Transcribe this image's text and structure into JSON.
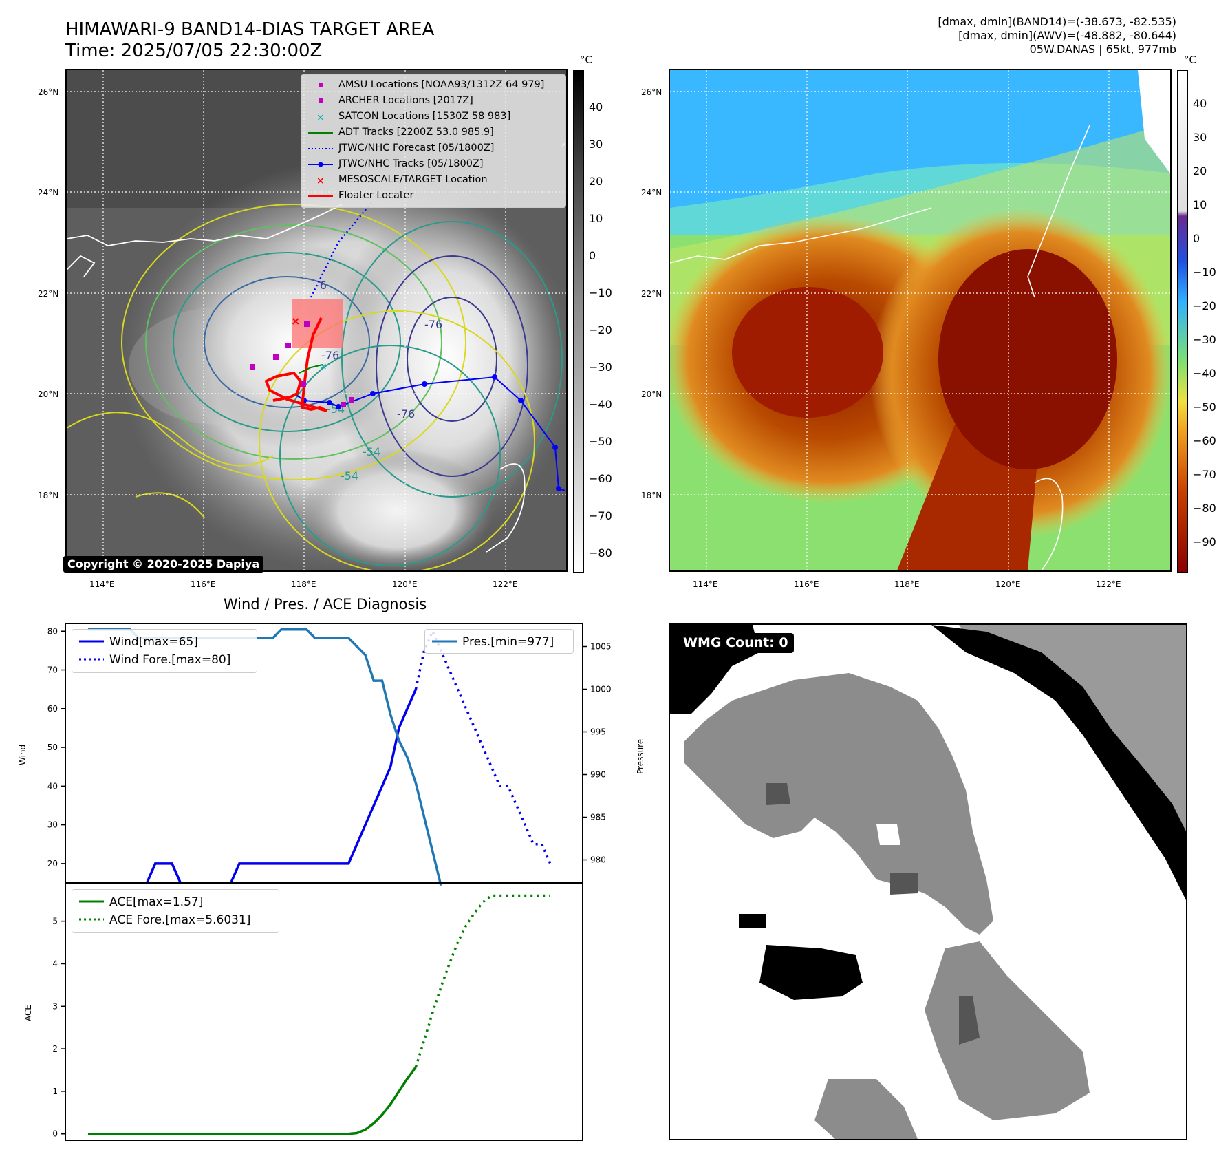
{
  "header": {
    "title": "HIMAWARI-9 BAND14-DIAS TARGET AREA",
    "time": "Time: 2025/07/05 22:30:00Z",
    "dmax_band14": "[dmax, dmin](BAND14)=(-38.673, -82.535)",
    "dmax_awv": "[dmax, dmin](AWV)=(-48.882, -80.644)",
    "storm": "05W.DANAS | 65kt, 977mb"
  },
  "map_left": {
    "lat_labels": [
      "26°N",
      "24°N",
      "22°N",
      "20°N",
      "18°N"
    ],
    "lon_labels": [
      "114°E",
      "116°E",
      "118°E",
      "120°E",
      "122°E"
    ],
    "copyright": "Copyright © 2020-2025 Dapiya",
    "contour_labels": [
      "-6",
      "-76",
      "-76",
      "-54",
      "-54",
      "-54",
      "-76"
    ],
    "legend": [
      {
        "label": "AMSU Locations [NOAA93/1312Z 64 979]",
        "symbol": "square",
        "color": "#c000c0"
      },
      {
        "label": "ARCHER Locations [2017Z]",
        "symbol": "square",
        "color": "#c000c0"
      },
      {
        "label": "SATCON Locations [1530Z 58 983]",
        "symbol": "x",
        "color": "#00b0b0"
      },
      {
        "label": "ADT Tracks [2200Z 53.0 985.9]",
        "symbol": "line",
        "color": "#008000"
      },
      {
        "label": "JTWC/NHC Forecast [05/1800Z]",
        "symbol": "dotted",
        "color": "#0000ff"
      },
      {
        "label": "JTWC/NHC Tracks [05/1800Z]",
        "symbol": "dotline",
        "color": "#0000ff"
      },
      {
        "label": "MESOSCALE/TARGET Location",
        "symbol": "x",
        "color": "#ff0000"
      },
      {
        "label": "Floater Locater",
        "symbol": "line",
        "color": "#ff0000"
      }
    ],
    "colorbar_unit": "°C",
    "colorbar_ticks": [
      "40",
      "30",
      "20",
      "10",
      "0",
      "−10",
      "−20",
      "−30",
      "−40",
      "−50",
      "−60",
      "−70",
      "−80"
    ]
  },
  "map_right": {
    "lat_labels": [
      "26°N",
      "24°N",
      "22°N",
      "20°N",
      "18°N"
    ],
    "lon_labels": [
      "114°E",
      "116°E",
      "118°E",
      "120°E",
      "122°E"
    ],
    "colorbar_unit": "°C",
    "colorbar_ticks": [
      "40",
      "30",
      "20",
      "10",
      "0",
      "−10",
      "−20",
      "−30",
      "−40",
      "−50",
      "−60",
      "−70",
      "−80",
      "−90"
    ]
  },
  "wmg": {
    "label": "WMG Count: 0"
  },
  "diagnosis": {
    "title": "Wind / Pres. / ACE Diagnosis"
  },
  "colors": {
    "wind": "#0000ee",
    "pressure": "#1f77b4",
    "ace": "#008000"
  },
  "chart_data": [
    {
      "type": "line",
      "title": "Wind / Pres. / ACE Diagnosis",
      "ylabel": "Wind",
      "y2label": "Pressure",
      "ylim": [
        15,
        82
      ],
      "y2lim": [
        977.3,
        1007.7
      ],
      "yticks": [
        "20",
        "30",
        "40",
        "50",
        "60",
        "70",
        "80"
      ],
      "y2ticks": [
        "980",
        "985",
        "990",
        "995",
        "1000",
        "1005"
      ],
      "series": [
        {
          "name": "Wind[max=65]",
          "axis": "left",
          "style": "solid",
          "color": "#0000ee",
          "values": [
            15,
            15,
            15,
            15,
            15,
            15,
            15,
            15,
            20,
            20,
            20,
            15,
            15,
            15,
            15,
            15,
            15,
            15,
            20,
            20,
            20,
            20,
            20,
            20,
            20,
            20,
            20,
            20,
            20,
            20,
            20,
            20,
            25,
            30,
            35,
            40,
            45,
            55,
            60,
            65
          ]
        },
        {
          "name": "Wind Fore.[max=80]",
          "axis": "left",
          "style": "dotted",
          "color": "#0000ee",
          "index_start": 39,
          "values": [
            65,
            75,
            80,
            75,
            70,
            65,
            60,
            55,
            50,
            45,
            40,
            40,
            35,
            30,
            25,
            25,
            20
          ]
        },
        {
          "name": "Pres.[min=977]",
          "axis": "right",
          "style": "solid",
          "color": "#1f77b4",
          "values": [
            1007,
            1007,
            1007,
            1007,
            1007,
            1007,
            1006,
            1006,
            1006,
            1006,
            1006,
            1006,
            1006,
            1006,
            1006,
            1006,
            1006,
            1006,
            1006,
            1006,
            1006,
            1006,
            1006,
            1007,
            1007,
            1007,
            1007,
            1006,
            1006,
            1006,
            1006,
            1006,
            1005,
            1004,
            1001,
            1001,
            997,
            994,
            992,
            989,
            985,
            981,
            977
          ]
        }
      ]
    },
    {
      "type": "line",
      "ylabel": "ACE",
      "ylim": [
        -0.15,
        5.9
      ],
      "yticks": [
        "0",
        "1",
        "2",
        "3",
        "4",
        "5"
      ],
      "series": [
        {
          "name": "ACE[max=1.57]",
          "style": "solid",
          "color": "#008000",
          "values": [
            0,
            0,
            0,
            0,
            0,
            0,
            0,
            0,
            0,
            0,
            0,
            0,
            0,
            0,
            0,
            0,
            0,
            0,
            0,
            0,
            0,
            0,
            0,
            0,
            0,
            0,
            0,
            0,
            0,
            0,
            0,
            0,
            0.02,
            0.1,
            0.25,
            0.45,
            0.7,
            1.0,
            1.3,
            1.57
          ]
        },
        {
          "name": "ACE Fore.[max=5.6031]",
          "style": "dotted",
          "color": "#008000",
          "index_start": 39,
          "values": [
            1.57,
            2.2,
            2.85,
            3.45,
            4.0,
            4.5,
            4.9,
            5.2,
            5.45,
            5.6,
            5.6,
            5.6,
            5.6,
            5.6,
            5.6,
            5.6,
            5.6
          ]
        }
      ]
    }
  ]
}
